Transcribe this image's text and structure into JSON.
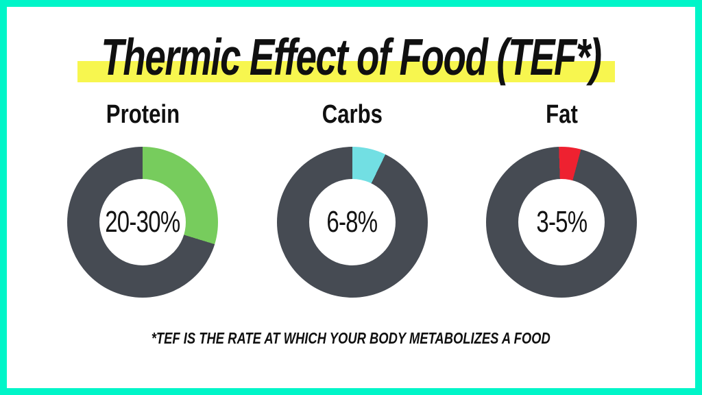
{
  "frame": {
    "border_color": "#00f5c8",
    "background_color": "#ffffff"
  },
  "title": {
    "text": "Thermic Effect of Food (TEF*)",
    "highlight_color": "#f7f64f",
    "text_color": "#101010"
  },
  "footnote": {
    "text": "*TEF IS THE RATE AT WHICH YOUR BODY METABOLIZES A FOOD"
  },
  "colors": {
    "ring_dark": "#464b53",
    "protein_green": "#77cc5d",
    "carbs_cyan": "#72dfe3",
    "fat_red": "#ee2130"
  },
  "chart_data": [
    {
      "type": "pie",
      "subtype": "donut",
      "title": "Protein",
      "center_label": "20-30%",
      "tef_range_pct": [
        20,
        30
      ],
      "slices": [
        {
          "name": "tef",
          "value": 30,
          "color": "#77cc5d"
        },
        {
          "name": "rest",
          "value": 70,
          "color": "#464b53"
        }
      ],
      "start_deg": 0,
      "sweep_deg": 107
    },
    {
      "type": "pie",
      "subtype": "donut",
      "title": "Carbs",
      "center_label": "6-8%",
      "tef_range_pct": [
        6,
        8
      ],
      "slices": [
        {
          "name": "tef",
          "value": 7,
          "color": "#72dfe3"
        },
        {
          "name": "rest",
          "value": 93,
          "color": "#464b53"
        }
      ],
      "start_deg": 0,
      "sweep_deg": 26
    },
    {
      "type": "pie",
      "subtype": "donut",
      "title": "Fat",
      "center_label": "3-5%",
      "tef_range_pct": [
        3,
        5
      ],
      "slices": [
        {
          "name": "tef",
          "value": 5,
          "color": "#ee2130"
        },
        {
          "name": "rest",
          "value": 95,
          "color": "#464b53"
        }
      ],
      "start_deg": -2,
      "sweep_deg": 17
    }
  ]
}
